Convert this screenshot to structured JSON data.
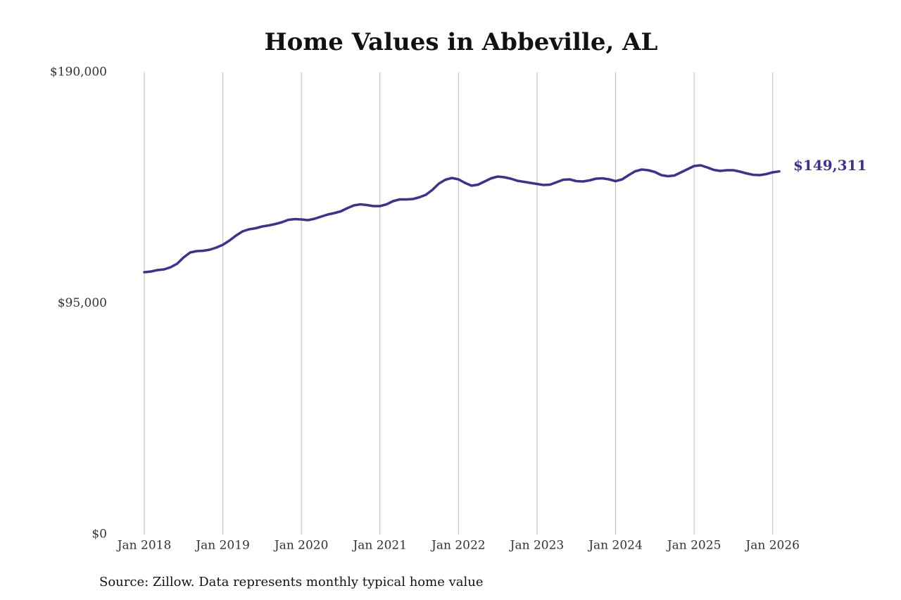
{
  "chart_data": {
    "type": "line",
    "title": "Home Values in Abbeville, AL",
    "source": "Source: Zillow. Data represents monthly typical home value",
    "x": [
      "2018-01",
      "2018-02",
      "2018-03",
      "2018-04",
      "2018-05",
      "2018-06",
      "2018-07",
      "2018-08",
      "2018-09",
      "2018-10",
      "2018-11",
      "2018-12",
      "2019-01",
      "2019-02",
      "2019-03",
      "2019-04",
      "2019-05",
      "2019-06",
      "2019-07",
      "2019-08",
      "2019-09",
      "2019-10",
      "2019-11",
      "2019-12",
      "2020-01",
      "2020-02",
      "2020-03",
      "2020-04",
      "2020-05",
      "2020-06",
      "2020-07",
      "2020-08",
      "2020-09",
      "2020-10",
      "2020-11",
      "2020-12",
      "2021-01",
      "2021-02",
      "2021-03",
      "2021-04",
      "2021-05",
      "2021-06",
      "2021-07",
      "2021-08",
      "2021-09",
      "2021-10",
      "2021-11",
      "2021-12",
      "2022-01",
      "2022-02",
      "2022-03",
      "2022-04",
      "2022-05",
      "2022-06",
      "2022-07",
      "2022-08",
      "2022-09",
      "2022-10",
      "2022-11",
      "2022-12",
      "2023-01",
      "2023-02",
      "2023-03",
      "2023-04",
      "2023-05",
      "2023-06",
      "2023-07",
      "2023-08",
      "2023-09",
      "2023-10",
      "2023-11",
      "2023-12",
      "2024-01",
      "2024-02",
      "2024-03",
      "2024-04",
      "2024-05",
      "2024-06",
      "2024-07",
      "2024-08",
      "2024-09",
      "2024-10",
      "2024-11",
      "2024-12",
      "2025-01",
      "2025-02",
      "2025-03",
      "2025-04",
      "2025-05",
      "2025-06",
      "2025-07",
      "2025-08",
      "2025-09",
      "2025-10",
      "2025-11",
      "2025-12",
      "2026-01",
      "2026-02"
    ],
    "series": [
      {
        "color": "#3b3391",
        "values": [
          107870,
          108160,
          108740,
          109030,
          109900,
          111340,
          113940,
          115960,
          116540,
          116690,
          117120,
          117990,
          119150,
          120890,
          122910,
          124650,
          125510,
          125950,
          126670,
          127100,
          127680,
          128400,
          129420,
          129710,
          129560,
          129270,
          129850,
          130720,
          131590,
          132160,
          132890,
          134190,
          135350,
          135780,
          135490,
          135060,
          135060,
          135780,
          137080,
          137800,
          137800,
          137950,
          138670,
          139680,
          141710,
          144310,
          145900,
          146620,
          146050,
          144600,
          143440,
          143880,
          145180,
          146480,
          147200,
          146910,
          146340,
          145470,
          145030,
          144600,
          144170,
          143730,
          143880,
          144890,
          145900,
          146050,
          145320,
          145180,
          145610,
          146340,
          146480,
          146050,
          145320,
          146050,
          147780,
          149370,
          150090,
          149810,
          149080,
          147780,
          147350,
          147640,
          148940,
          150240,
          151540,
          151830,
          150960,
          149950,
          149520,
          149810,
          149810,
          149230,
          148500,
          147920,
          147780,
          148220,
          148940,
          149311
        ],
        "value_labels": [
          null,
          null,
          null,
          null,
          null,
          null,
          null,
          null,
          null,
          null,
          null,
          null,
          null,
          null,
          null,
          null,
          null,
          null,
          null,
          null,
          null,
          null,
          null,
          null,
          null,
          null,
          null,
          null,
          null,
          null,
          null,
          null,
          null,
          null,
          null,
          null,
          null,
          null,
          null,
          null,
          null,
          null,
          null,
          null,
          null,
          null,
          null,
          null,
          null,
          null,
          null,
          null,
          null,
          null,
          null,
          null,
          null,
          null,
          null,
          null,
          null,
          null,
          null,
          null,
          null,
          null,
          null,
          null,
          null,
          null,
          null,
          null,
          null,
          null,
          null,
          null,
          null,
          null,
          null,
          null,
          null,
          null,
          null,
          null,
          null,
          null,
          null,
          null,
          null,
          null,
          null,
          null,
          null,
          null,
          null,
          null,
          null,
          "$149,311"
        ]
      }
    ],
    "xlim": [
      "2018-01",
      "2026-02"
    ],
    "xticks": [
      {
        "value": "2018-01",
        "label": "Jan 2018"
      },
      {
        "value": "2019-01",
        "label": "Jan 2019"
      },
      {
        "value": "2020-01",
        "label": "Jan 2020"
      },
      {
        "value": "2021-01",
        "label": "Jan 2021"
      },
      {
        "value": "2022-01",
        "label": "Jan 2022"
      },
      {
        "value": "2023-01",
        "label": "Jan 2023"
      },
      {
        "value": "2024-01",
        "label": "Jan 2024"
      },
      {
        "value": "2025-01",
        "label": "Jan 2025"
      },
      {
        "value": "2026-01",
        "label": "Jan 2026"
      }
    ],
    "ylim": [
      0,
      190000
    ],
    "yticks": [
      {
        "value": 0,
        "label": "$0"
      },
      {
        "value": 95000,
        "label": "$95,000"
      },
      {
        "value": 190000,
        "label": "$190,000"
      }
    ],
    "grid": "x"
  }
}
